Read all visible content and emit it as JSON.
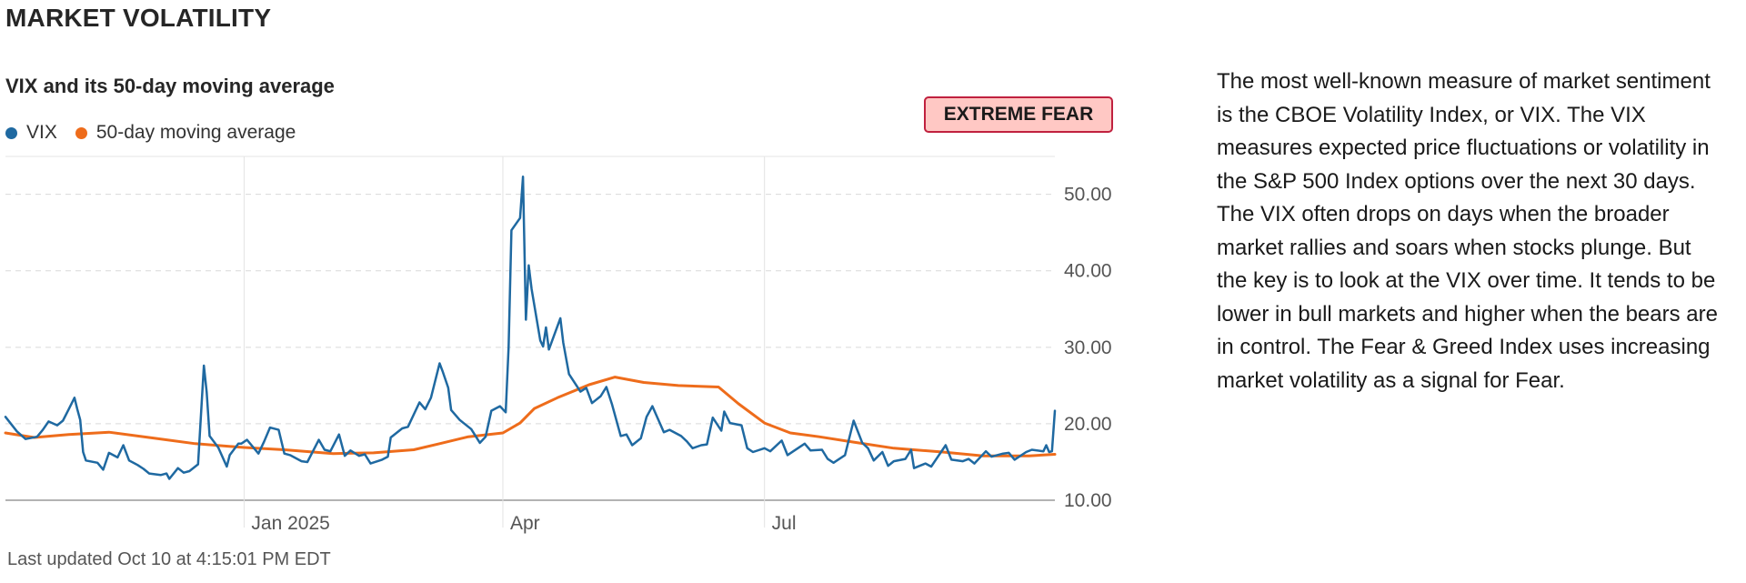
{
  "section_title": "MARKET VOLATILITY",
  "badge": {
    "label": "EXTREME FEAR",
    "border_color": "#c0213f",
    "fill_color": "#ffc8c4"
  },
  "description": "The most well-known measure of market sentiment is the CBOE Volatility Index, or VIX. The VIX measures expected price fluctuations or volatility in the S&P 500 Index options over the next 30 days. The VIX often drops on days when the broader market rallies and soars when stocks plunge. But the key is to look at the VIX over time. It tends to be lower in bull markets and higher when the bears are in control. The Fear & Greed Index uses increasing market volatility as a signal for Fear.",
  "last_updated": "Last updated Oct 10 at 4:15:01 PM EDT",
  "chart_data": {
    "type": "line",
    "title": "VIX and its 50-day moving average",
    "xlabel": "",
    "ylabel": "",
    "ylim": [
      10,
      54
    ],
    "y_ticks": [
      "10.00",
      "20.00",
      "30.00",
      "40.00",
      "50.00"
    ],
    "x_ticks": [
      "Jan 2025",
      "Apr",
      "Jul"
    ],
    "x_range": [
      "2024-10-10",
      "2025-10-10"
    ],
    "x_tick_dates": [
      "2025-01-01",
      "2025-04-01",
      "2025-07-01"
    ],
    "grid": true,
    "legend_position": "top-left",
    "series": [
      {
        "name": "VIX",
        "color": "#1f69a1",
        "points": [
          [
            "2024-10-10",
            20.9
          ],
          [
            "2024-10-14",
            19.0
          ],
          [
            "2024-10-17",
            18.0
          ],
          [
            "2024-10-21",
            18.3
          ],
          [
            "2024-10-23",
            19.2
          ],
          [
            "2024-10-25",
            20.3
          ],
          [
            "2024-10-28",
            19.8
          ],
          [
            "2024-10-30",
            20.4
          ],
          [
            "2024-11-01",
            21.9
          ],
          [
            "2024-11-03",
            23.4
          ],
          [
            "2024-11-04",
            21.9
          ],
          [
            "2024-11-05",
            20.5
          ],
          [
            "2024-11-06",
            16.3
          ],
          [
            "2024-11-07",
            15.2
          ],
          [
            "2024-11-11",
            14.9
          ],
          [
            "2024-11-13",
            14.0
          ],
          [
            "2024-11-15",
            16.2
          ],
          [
            "2024-11-18",
            15.6
          ],
          [
            "2024-11-20",
            17.2
          ],
          [
            "2024-11-22",
            15.2
          ],
          [
            "2024-11-25",
            14.6
          ],
          [
            "2024-11-27",
            14.1
          ],
          [
            "2024-11-29",
            13.5
          ],
          [
            "2024-12-03",
            13.3
          ],
          [
            "2024-12-05",
            13.5
          ],
          [
            "2024-12-06",
            12.8
          ],
          [
            "2024-12-09",
            14.2
          ],
          [
            "2024-12-11",
            13.6
          ],
          [
            "2024-12-13",
            13.8
          ],
          [
            "2024-12-16",
            14.7
          ],
          [
            "2024-12-18",
            27.6
          ],
          [
            "2024-12-19",
            24.1
          ],
          [
            "2024-12-20",
            18.4
          ],
          [
            "2024-12-23",
            16.9
          ],
          [
            "2024-12-26",
            14.4
          ],
          [
            "2024-12-27",
            15.9
          ],
          [
            "2024-12-30",
            17.4
          ],
          [
            "2024-12-31",
            17.4
          ],
          [
            "2025-01-02",
            17.9
          ],
          [
            "2025-01-06",
            16.1
          ],
          [
            "2025-01-08",
            17.7
          ],
          [
            "2025-01-10",
            19.5
          ],
          [
            "2025-01-13",
            19.2
          ],
          [
            "2025-01-15",
            16.1
          ],
          [
            "2025-01-17",
            15.9
          ],
          [
            "2025-01-21",
            15.1
          ],
          [
            "2025-01-23",
            15.0
          ],
          [
            "2025-01-27",
            17.9
          ],
          [
            "2025-01-29",
            16.6
          ],
          [
            "2025-01-31",
            16.4
          ],
          [
            "2025-02-03",
            18.6
          ],
          [
            "2025-02-05",
            15.8
          ],
          [
            "2025-02-07",
            16.5
          ],
          [
            "2025-02-10",
            15.8
          ],
          [
            "2025-02-12",
            16.0
          ],
          [
            "2025-02-14",
            14.8
          ],
          [
            "2025-02-18",
            15.3
          ],
          [
            "2025-02-20",
            15.7
          ],
          [
            "2025-02-21",
            18.2
          ],
          [
            "2025-02-25",
            19.4
          ],
          [
            "2025-02-27",
            19.6
          ],
          [
            "2025-03-03",
            22.8
          ],
          [
            "2025-03-05",
            21.9
          ],
          [
            "2025-03-07",
            23.4
          ],
          [
            "2025-03-10",
            27.9
          ],
          [
            "2025-03-11",
            26.9
          ],
          [
            "2025-03-13",
            24.7
          ],
          [
            "2025-03-14",
            21.8
          ],
          [
            "2025-03-17",
            20.5
          ],
          [
            "2025-03-19",
            19.9
          ],
          [
            "2025-03-21",
            19.3
          ],
          [
            "2025-03-24",
            17.5
          ],
          [
            "2025-03-26",
            18.3
          ],
          [
            "2025-03-28",
            21.7
          ],
          [
            "2025-03-31",
            22.3
          ],
          [
            "2025-04-02",
            21.5
          ],
          [
            "2025-04-03",
            30.0
          ],
          [
            "2025-04-04",
            45.3
          ],
          [
            "2025-04-07",
            46.9
          ],
          [
            "2025-04-08",
            52.3
          ],
          [
            "2025-04-09",
            33.6
          ],
          [
            "2025-04-10",
            40.7
          ],
          [
            "2025-04-11",
            37.6
          ],
          [
            "2025-04-14",
            30.9
          ],
          [
            "2025-04-15",
            30.1
          ],
          [
            "2025-04-16",
            32.6
          ],
          [
            "2025-04-17",
            29.7
          ],
          [
            "2025-04-21",
            33.8
          ],
          [
            "2025-04-22",
            30.6
          ],
          [
            "2025-04-24",
            26.5
          ],
          [
            "2025-04-28",
            24.2
          ],
          [
            "2025-04-30",
            24.7
          ],
          [
            "2025-05-02",
            22.7
          ],
          [
            "2025-05-05",
            23.6
          ],
          [
            "2025-05-07",
            24.8
          ],
          [
            "2025-05-09",
            22.5
          ],
          [
            "2025-05-12",
            18.4
          ],
          [
            "2025-05-14",
            18.6
          ],
          [
            "2025-05-16",
            17.2
          ],
          [
            "2025-05-19",
            18.1
          ],
          [
            "2025-05-21",
            20.9
          ],
          [
            "2025-05-23",
            22.3
          ],
          [
            "2025-05-27",
            18.9
          ],
          [
            "2025-05-29",
            19.2
          ],
          [
            "2025-06-02",
            18.4
          ],
          [
            "2025-06-04",
            17.7
          ],
          [
            "2025-06-06",
            16.8
          ],
          [
            "2025-06-09",
            17.2
          ],
          [
            "2025-06-11",
            17.3
          ],
          [
            "2025-06-13",
            20.8
          ],
          [
            "2025-06-16",
            19.1
          ],
          [
            "2025-06-17",
            21.6
          ],
          [
            "2025-06-19",
            20.1
          ],
          [
            "2025-06-23",
            19.8
          ],
          [
            "2025-06-25",
            16.8
          ],
          [
            "2025-06-27",
            16.3
          ],
          [
            "2025-07-01",
            16.8
          ],
          [
            "2025-07-03",
            16.4
          ],
          [
            "2025-07-07",
            17.8
          ],
          [
            "2025-07-09",
            15.9
          ],
          [
            "2025-07-11",
            16.4
          ],
          [
            "2025-07-15",
            17.4
          ],
          [
            "2025-07-17",
            16.5
          ],
          [
            "2025-07-21",
            16.6
          ],
          [
            "2025-07-23",
            15.4
          ],
          [
            "2025-07-25",
            14.9
          ],
          [
            "2025-07-29",
            15.9
          ],
          [
            "2025-08-01",
            20.4
          ],
          [
            "2025-08-04",
            17.5
          ],
          [
            "2025-08-06",
            16.8
          ],
          [
            "2025-08-08",
            15.2
          ],
          [
            "2025-08-11",
            16.3
          ],
          [
            "2025-08-13",
            14.5
          ],
          [
            "2025-08-15",
            15.1
          ],
          [
            "2025-08-19",
            15.4
          ],
          [
            "2025-08-21",
            16.6
          ],
          [
            "2025-08-22",
            14.2
          ],
          [
            "2025-08-26",
            14.8
          ],
          [
            "2025-08-28",
            14.4
          ],
          [
            "2025-09-02",
            17.2
          ],
          [
            "2025-09-04",
            15.3
          ],
          [
            "2025-09-08",
            15.1
          ],
          [
            "2025-09-10",
            15.4
          ],
          [
            "2025-09-12",
            14.8
          ],
          [
            "2025-09-16",
            16.4
          ],
          [
            "2025-09-18",
            15.7
          ],
          [
            "2025-09-22",
            16.1
          ],
          [
            "2025-09-24",
            16.2
          ],
          [
            "2025-09-26",
            15.3
          ],
          [
            "2025-09-30",
            16.3
          ],
          [
            "2025-10-02",
            16.6
          ],
          [
            "2025-10-06",
            16.4
          ],
          [
            "2025-10-07",
            17.2
          ],
          [
            "2025-10-08",
            16.3
          ],
          [
            "2025-10-09",
            16.4
          ],
          [
            "2025-10-10",
            21.7
          ]
        ]
      },
      {
        "name": "50-day moving average",
        "color": "#ee6c1b",
        "points": [
          [
            "2024-10-10",
            18.8
          ],
          [
            "2024-10-20",
            18.2
          ],
          [
            "2024-11-01",
            18.6
          ],
          [
            "2024-11-15",
            18.9
          ],
          [
            "2024-12-01",
            18.1
          ],
          [
            "2024-12-15",
            17.4
          ],
          [
            "2025-01-01",
            16.9
          ],
          [
            "2025-01-15",
            16.6
          ],
          [
            "2025-02-01",
            16.1
          ],
          [
            "2025-02-15",
            16.2
          ],
          [
            "2025-03-01",
            16.6
          ],
          [
            "2025-03-10",
            17.4
          ],
          [
            "2025-03-20",
            18.3
          ],
          [
            "2025-04-01",
            18.8
          ],
          [
            "2025-04-07",
            20.1
          ],
          [
            "2025-04-12",
            22.0
          ],
          [
            "2025-04-20",
            23.4
          ],
          [
            "2025-05-01",
            25.1
          ],
          [
            "2025-05-10",
            26.1
          ],
          [
            "2025-05-20",
            25.4
          ],
          [
            "2025-06-01",
            25.0
          ],
          [
            "2025-06-15",
            24.8
          ],
          [
            "2025-06-22",
            22.6
          ],
          [
            "2025-07-01",
            20.1
          ],
          [
            "2025-07-10",
            18.8
          ],
          [
            "2025-07-20",
            18.3
          ],
          [
            "2025-08-01",
            17.6
          ],
          [
            "2025-08-15",
            16.8
          ],
          [
            "2025-09-01",
            16.3
          ],
          [
            "2025-09-15",
            15.8
          ],
          [
            "2025-10-01",
            15.8
          ],
          [
            "2025-10-10",
            16.0
          ]
        ]
      }
    ]
  }
}
